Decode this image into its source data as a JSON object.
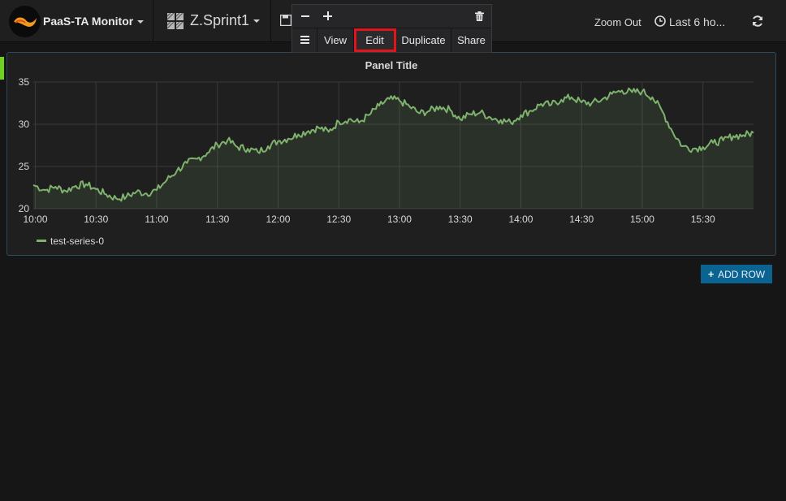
{
  "navbar": {
    "brand": "PaaS-TA Monitor",
    "dashboard_title": "Z.Sprint1",
    "zoom_out": "Zoom Out",
    "time_range": "Last 6 ho..."
  },
  "panel_menu": {
    "view": "View",
    "edit": "Edit",
    "duplicate": "Duplicate",
    "share": "Share"
  },
  "panel": {
    "title": "Panel Title",
    "legend_label": "test-series-0"
  },
  "add_row": "ADD ROW",
  "colors": {
    "series": "#7eb26d",
    "highlight": "#e0141c",
    "add_row_bg": "#0a6390"
  },
  "chart_data": {
    "type": "line",
    "x_ticks": [
      "10:00",
      "10:30",
      "11:00",
      "11:30",
      "12:00",
      "12:30",
      "13:00",
      "13:30",
      "14:00",
      "14:30",
      "15:00",
      "15:30"
    ],
    "y_ticks": [
      20,
      25,
      30,
      35
    ],
    "ylim": [
      20,
      35
    ],
    "x_range_minutes": [
      -1,
      355
    ],
    "grid": true,
    "legend_position": "bottom-left",
    "series": [
      {
        "name": "test-series-0",
        "x_minutes": [
          -1,
          5,
          10,
          15,
          20,
          25,
          30,
          35,
          40,
          45,
          50,
          55,
          60,
          65,
          70,
          75,
          80,
          85,
          90,
          95,
          100,
          105,
          110,
          115,
          120,
          125,
          130,
          135,
          140,
          145,
          150,
          155,
          160,
          165,
          170,
          175,
          180,
          185,
          190,
          195,
          200,
          205,
          210,
          215,
          220,
          225,
          230,
          235,
          240,
          245,
          250,
          255,
          260,
          265,
          270,
          275,
          280,
          285,
          290,
          295,
          300,
          305,
          310,
          315,
          320,
          325,
          330,
          335,
          340,
          345,
          350,
          355
        ],
        "values": [
          22.8,
          22.2,
          22.6,
          22.1,
          22.7,
          22.9,
          22.3,
          21.7,
          21.2,
          21.4,
          22.0,
          21.8,
          22.2,
          23.4,
          24.5,
          25.4,
          25.9,
          26.6,
          27.6,
          28.1,
          27.3,
          27.1,
          26.7,
          27.4,
          28.0,
          28.3,
          28.8,
          29.2,
          29.6,
          29.1,
          30.3,
          30.6,
          30.2,
          31.1,
          32.2,
          33.0,
          32.8,
          32.1,
          31.3,
          31.6,
          32.1,
          31.7,
          30.6,
          31.2,
          31.4,
          30.8,
          30.5,
          30.2,
          31.1,
          31.6,
          32.4,
          32.3,
          32.9,
          33.2,
          32.6,
          32.5,
          32.9,
          33.6,
          34.0,
          33.8,
          33.9,
          33.2,
          31.5,
          29.1,
          27.4,
          27.1,
          27.3,
          27.8,
          28.1,
          28.6,
          28.7,
          29.0
        ]
      }
    ]
  }
}
